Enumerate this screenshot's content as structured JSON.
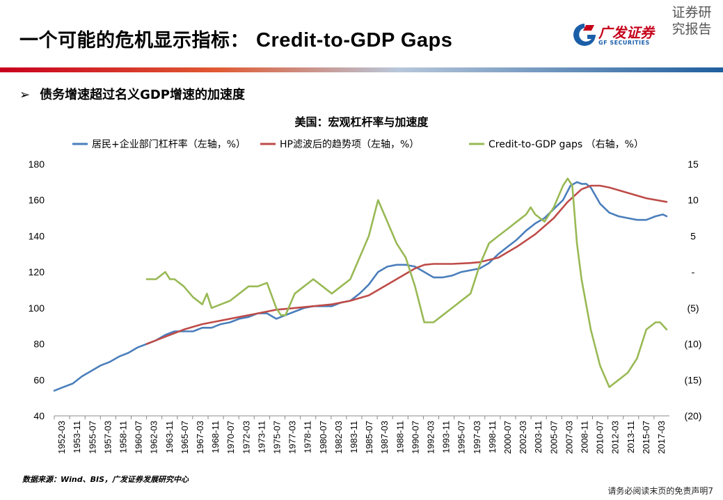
{
  "header": {
    "title_cn": "一个可能的危机显示指标：",
    "title_en": "Credit-to-GDP Gaps",
    "logo_cn": "广发证券",
    "logo_en": "GF SECURITIES",
    "tagline": "证券研究报告"
  },
  "bullet": {
    "arrow": "➢",
    "text": "债务增速超过名义GDP增速的加速度"
  },
  "source_note": "数据来源：Wind、BIS，广发证券发展研究中心",
  "disclaimer": "请务必阅读末页的免责声明7",
  "colors": {
    "blue": "#4a7ebb",
    "red": "#be4b48",
    "green": "#98b954"
  },
  "chart_data": {
    "type": "line",
    "title": "美国：宏观杠杆率与加速度",
    "legend": [
      "居民+企业部门杠杆率（左轴，%）",
      "HP滤波后的趋势项（左轴，%）",
      "Credit-to-GDP gaps （右轴，%）"
    ],
    "categories": [
      "1952-03",
      "1953-11",
      "1955-07",
      "1957-03",
      "1958-11",
      "1960-07",
      "1962-03",
      "1963-11",
      "1965-07",
      "1967-03",
      "1968-11",
      "1970-07",
      "1972-03",
      "1973-11",
      "1975-07",
      "1977-03",
      "1978-11",
      "1980-07",
      "1982-03",
      "1983-11",
      "1985-07",
      "1987-03",
      "1988-11",
      "1990-07",
      "1992-03",
      "1993-11",
      "1995-07",
      "1997-03",
      "1998-11",
      "2000-07",
      "2002-03",
      "2003-11",
      "2005-07",
      "2007-03",
      "2008-11",
      "2010-07",
      "2012-03",
      "2013-11",
      "2015-07",
      "2017-03"
    ],
    "left_axis": {
      "ticks": [
        "40",
        "60",
        "80",
        "100",
        "120",
        "140",
        "160",
        "180"
      ],
      "min": 40,
      "max": 180
    },
    "right_axis": {
      "ticks": [
        "(20)",
        "(15)",
        "(10)",
        "(5)",
        "-",
        "5",
        "10",
        "15"
      ],
      "min": -20,
      "max": 15
    },
    "x_start": 1952.0,
    "x_end": 2018.5,
    "series": [
      {
        "name": "居民+企业部门杠杆率（左轴，%）",
        "axis": "left",
        "x": [
          1952.0,
          1953.0,
          1954.0,
          1955.0,
          1956.0,
          1957.0,
          1958.0,
          1959.0,
          1960.0,
          1961.0,
          1962.0,
          1963.0,
          1964.0,
          1965.0,
          1966.0,
          1967.0,
          1968.0,
          1969.0,
          1970.0,
          1971.0,
          1972.0,
          1973.0,
          1974.0,
          1975.0,
          1976.0,
          1977.0,
          1978.0,
          1979.0,
          1980.0,
          1981.0,
          1982.0,
          1983.0,
          1984.0,
          1985.0,
          1986.0,
          1987.0,
          1988.0,
          1989.0,
          1990.0,
          1991.0,
          1992.0,
          1993.0,
          1994.0,
          1995.0,
          1996.0,
          1997.0,
          1998.0,
          1999.0,
          2000.0,
          2001.0,
          2002.0,
          2003.0,
          2004.0,
          2005.0,
          2006.0,
          2007.0,
          2007.8,
          2008.5,
          2009.0,
          2009.5,
          2010.0,
          2011.0,
          2012.0,
          2013.0,
          2014.0,
          2015.0,
          2016.0,
          2017.0,
          2017.8,
          2018.2
        ],
        "values": [
          54,
          56,
          58,
          62,
          65,
          68,
          70,
          73,
          75,
          78,
          80,
          82,
          85,
          87,
          87,
          87,
          89,
          89,
          91,
          92,
          94,
          95,
          97,
          97,
          94,
          96,
          98,
          100,
          101,
          101,
          101,
          103,
          104,
          108,
          113,
          120,
          123,
          124,
          124,
          123,
          120,
          117,
          117,
          118,
          120,
          121,
          122,
          125,
          130,
          134,
          138,
          143,
          147,
          150,
          155,
          160,
          168,
          170,
          169,
          169,
          167,
          158,
          153,
          151,
          150,
          149,
          149,
          151,
          152,
          151
        ]
      },
      {
        "name": "HP滤波后的趋势项（左轴，%）",
        "axis": "left",
        "x": [
          1962.0,
          1964.0,
          1966.0,
          1968.0,
          1970.0,
          1972.0,
          1974.0,
          1976.0,
          1978.0,
          1980.0,
          1982.0,
          1984.0,
          1986.0,
          1988.0,
          1990.0,
          1991.0,
          1992.0,
          1993.0,
          1995.0,
          1997.0,
          1998.0,
          2000.0,
          2002.0,
          2004.0,
          2006.0,
          2007.5,
          2009.0,
          2010.0,
          2011.0,
          2012.0,
          2014.0,
          2016.0,
          2018.2
        ],
        "values": [
          80,
          84,
          88,
          91,
          93,
          95,
          97,
          99,
          100,
          101,
          102,
          104,
          107,
          113,
          119,
          122,
          124,
          124.5,
          124.5,
          125,
          125.5,
          128,
          134,
          141,
          150,
          159,
          166,
          168,
          168,
          167,
          164,
          161,
          159
        ]
      },
      {
        "name": "Credit-to-GDP gaps （右轴，%）",
        "axis": "right",
        "x": [
          1962.0,
          1963.0,
          1963.5,
          1964.0,
          1964.5,
          1965.0,
          1966.0,
          1967.0,
          1968.0,
          1968.5,
          1969.0,
          1970.0,
          1971.0,
          1972.0,
          1973.0,
          1974.0,
          1975.0,
          1976.0,
          1976.5,
          1977.0,
          1978.0,
          1979.0,
          1980.0,
          1981.0,
          1982.0,
          1983.0,
          1984.0,
          1985.0,
          1986.0,
          1987.0,
          1988.0,
          1989.0,
          1990.0,
          1991.0,
          1992.0,
          1993.0,
          1994.0,
          1995.0,
          1996.0,
          1997.0,
          1998.0,
          1999.0,
          2000.0,
          2001.0,
          2002.0,
          2003.0,
          2003.5,
          2004.0,
          2005.0,
          2006.0,
          2007.0,
          2007.5,
          2008.0,
          2008.5,
          2009.0,
          2010.0,
          2011.0,
          2012.0,
          2013.0,
          2014.0,
          2015.0,
          2016.0,
          2017.0,
          2017.5,
          2018.2
        ],
        "values": [
          -1,
          -1,
          -0.5,
          0,
          -1,
          -1,
          -2,
          -3.5,
          -4.5,
          -3,
          -5,
          -4.5,
          -4,
          -3,
          -2,
          -2,
          -1.5,
          -5,
          -6,
          -6,
          -3,
          -2,
          -1,
          -2,
          -3,
          -2,
          -1,
          2,
          5,
          10,
          7,
          4,
          2,
          -2,
          -7,
          -7,
          -6,
          -5,
          -4,
          -3,
          1,
          4,
          5,
          6,
          7,
          8,
          9,
          8,
          7,
          9,
          12,
          13,
          12,
          4,
          -1,
          -8,
          -13,
          -16,
          -15,
          -14,
          -12,
          -8,
          -7,
          -7,
          -8
        ]
      }
    ]
  }
}
